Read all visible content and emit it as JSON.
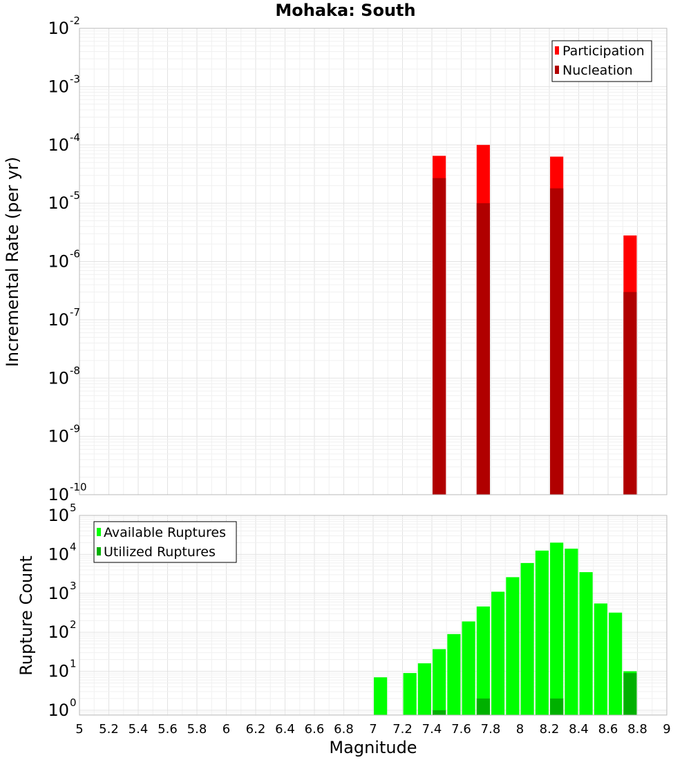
{
  "chart_data": [
    {
      "type": "bar",
      "title": "Mohaka: South",
      "xlabel": "",
      "ylabel": "Incremental Rate (per yr)",
      "xlim": [
        5,
        9
      ],
      "ylim": [
        1e-10,
        0.01
      ],
      "yscale": "log",
      "bar_width": 0.09,
      "grid": true,
      "legend_position": "top-right",
      "y_ticks": [
        {
          "base": "10",
          "exp": "-10"
        },
        {
          "base": "10",
          "exp": "-9"
        },
        {
          "base": "10",
          "exp": "-8"
        },
        {
          "base": "10",
          "exp": "-7"
        },
        {
          "base": "10",
          "exp": "-6"
        },
        {
          "base": "10",
          "exp": "-5"
        },
        {
          "base": "10",
          "exp": "-4"
        },
        {
          "base": "10",
          "exp": "-3"
        },
        {
          "base": "10",
          "exp": "-2"
        }
      ],
      "series": [
        {
          "name": "Participation",
          "color": "#ff0000",
          "x": [
            7.45,
            7.75,
            8.25,
            8.75
          ],
          "values": [
            6.5e-05,
            0.0001,
            6.3e-05,
            2.8e-06
          ]
        },
        {
          "name": "Nucleation",
          "color": "#b00000",
          "x": [
            7.45,
            7.75,
            8.25,
            8.75
          ],
          "values": [
            2.7e-05,
            1e-05,
            1.8e-05,
            3e-07
          ]
        }
      ]
    },
    {
      "type": "bar",
      "title": "",
      "xlabel": "Magnitude",
      "ylabel": "Rupture Count",
      "xlim": [
        5,
        9
      ],
      "ylim": [
        0.75,
        100000.0
      ],
      "yscale": "log",
      "bar_width": 0.09,
      "grid": true,
      "legend_position": "top-left",
      "x_ticks": [
        "5",
        "5.2",
        "5.4",
        "5.6",
        "5.8",
        "6",
        "6.2",
        "6.4",
        "6.6",
        "6.8",
        "7",
        "7.2",
        "7.4",
        "7.6",
        "7.8",
        "8",
        "8.2",
        "8.4",
        "8.6",
        "8.8",
        "9"
      ],
      "y_ticks": [
        {
          "base": "10",
          "exp": "0"
        },
        {
          "base": "10",
          "exp": "1"
        },
        {
          "base": "10",
          "exp": "2"
        },
        {
          "base": "10",
          "exp": "3"
        },
        {
          "base": "10",
          "exp": "4"
        },
        {
          "base": "10",
          "exp": "5"
        }
      ],
      "series": [
        {
          "name": "Available Ruptures",
          "color": "#00ff00",
          "x": [
            7.05,
            7.25,
            7.35,
            7.45,
            7.55,
            7.65,
            7.75,
            7.85,
            7.95,
            8.05,
            8.15,
            8.25,
            8.35,
            8.45,
            8.55,
            8.65,
            8.75
          ],
          "values": [
            7,
            9,
            16,
            37,
            90,
            190,
            460,
            1100,
            2600,
            6000,
            12500,
            20000,
            14000,
            3500,
            550,
            320,
            10
          ]
        },
        {
          "name": "Utilized Ruptures",
          "color": "#00b000",
          "x": [
            7.45,
            7.75,
            8.25,
            8.75
          ],
          "values": [
            1,
            2,
            2,
            9
          ]
        }
      ]
    }
  ]
}
